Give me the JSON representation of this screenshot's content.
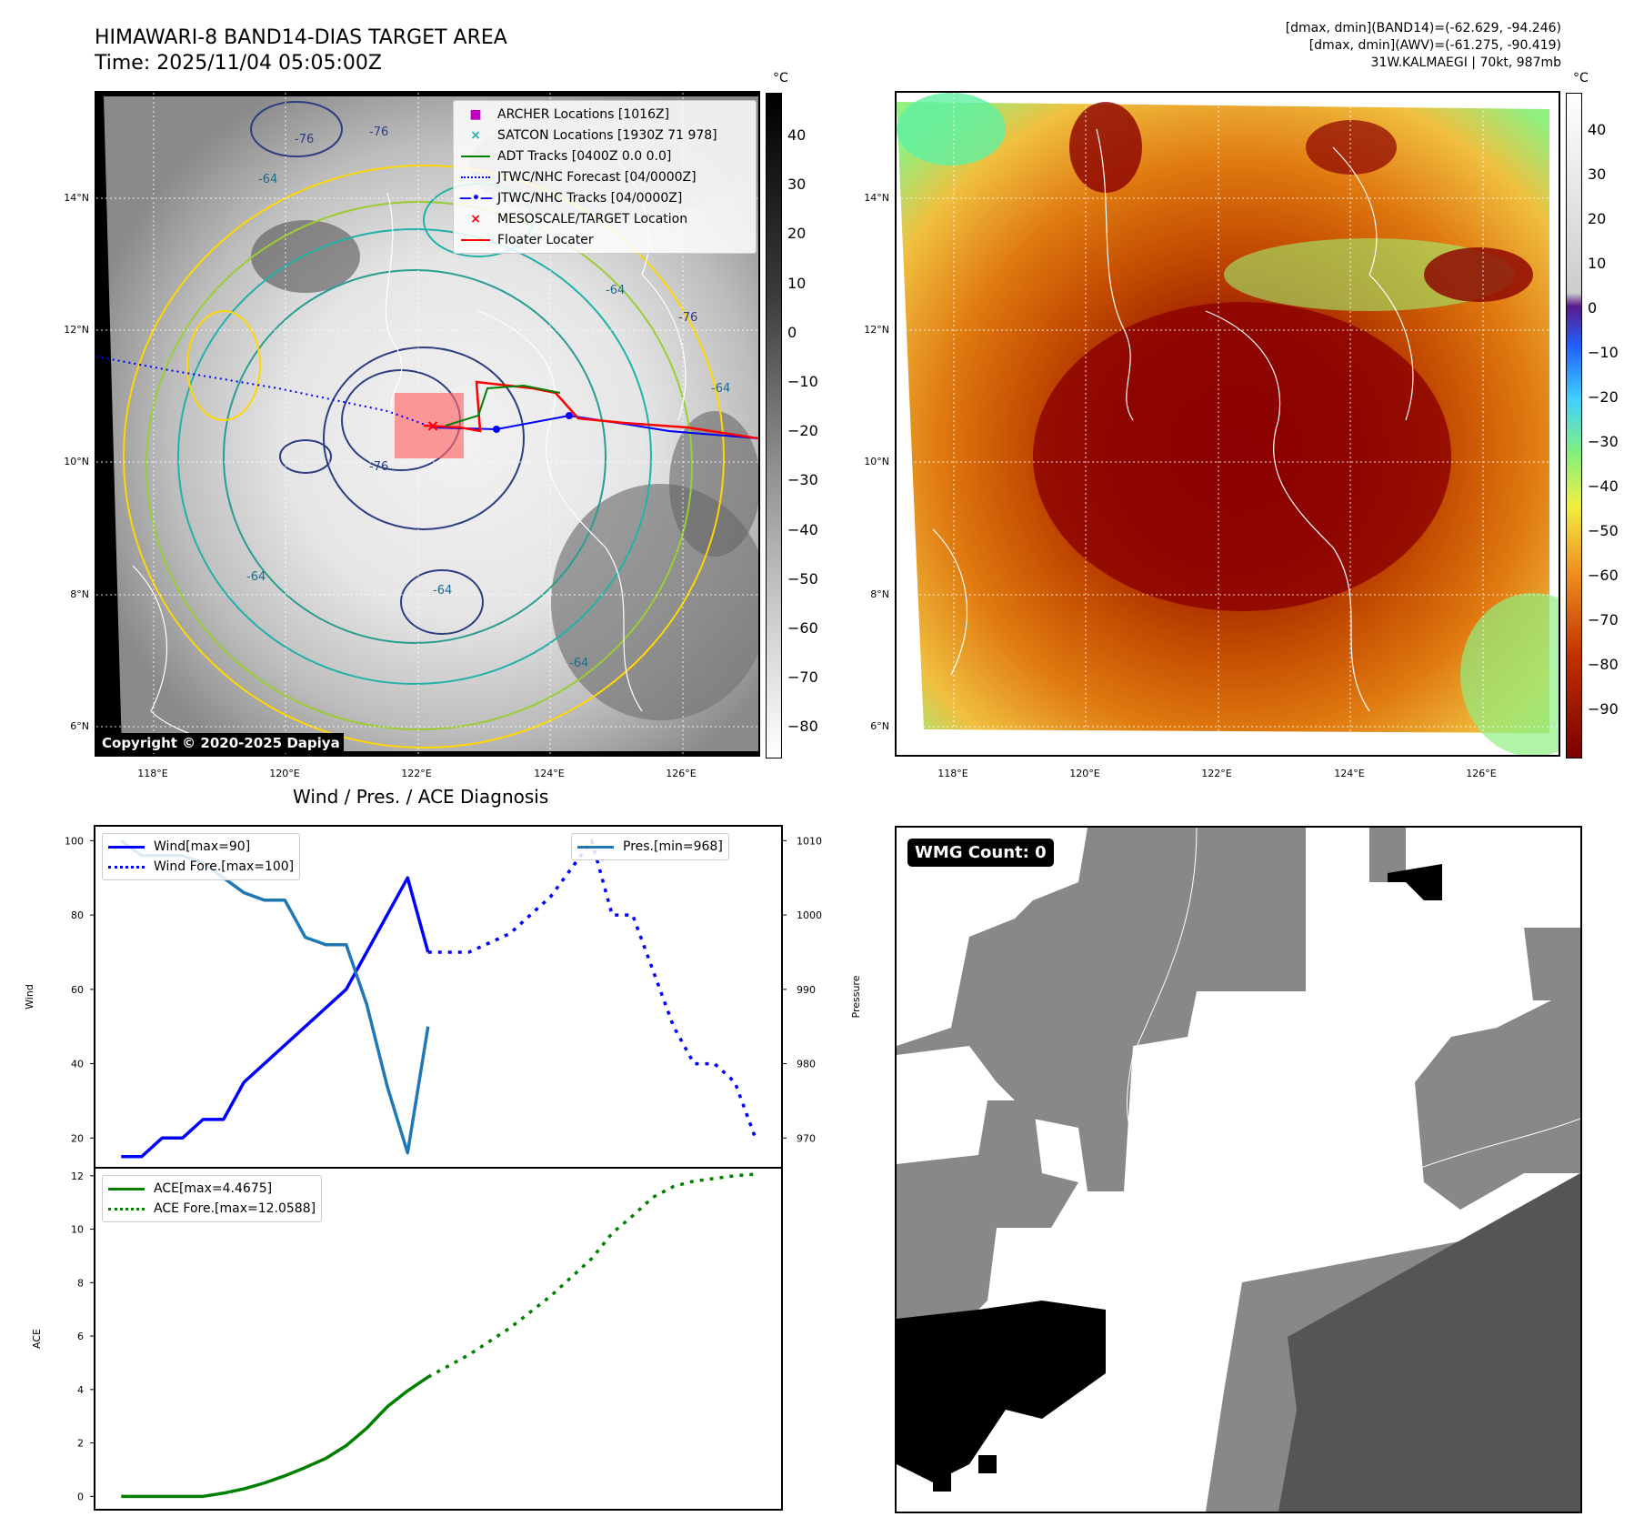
{
  "header": {
    "title_line1": "HIMAWARI-8 BAND14-DIAS TARGET AREA",
    "title_line2": "Time: 2025/11/04 05:05:00Z",
    "info_line1": "[dmax, dmin](BAND14)=(-62.629, -94.246)",
    "info_line2": "[dmax, dmin](AWV)=(-61.275, -90.419)",
    "info_line3": "31W.KALMAEGI | 70kt, 987mb"
  },
  "map_left": {
    "unit": "°C",
    "colorbar_ticks": [
      "40",
      "30",
      "20",
      "10",
      "0",
      "−10",
      "−20",
      "−30",
      "−40",
      "−50",
      "−60",
      "−70",
      "−80"
    ],
    "lat_ticks": [
      "14°N",
      "12°N",
      "10°N",
      "8°N",
      "6°N"
    ],
    "lon_ticks": [
      "118°E",
      "120°E",
      "122°E",
      "124°E",
      "126°E"
    ],
    "copyright": "Copyright © 2020-2025 Dapiya",
    "legend": [
      {
        "label": "ARCHER Locations [1016Z]",
        "symbol": "square",
        "color": "#c000c0"
      },
      {
        "label": "SATCON Locations [1930Z 71 978]",
        "symbol": "x",
        "color": "#20b2aa"
      },
      {
        "label": "ADT Tracks [0400Z 0.0 0.0]",
        "symbol": "line",
        "color": "#008000"
      },
      {
        "label": "JTWC/NHC Forecast [04/0000Z]",
        "symbol": "dotted",
        "color": "#0000ff"
      },
      {
        "label": "JTWC/NHC Tracks [04/0000Z]",
        "symbol": "dotline",
        "color": "#0000ff"
      },
      {
        "label": "MESOSCALE/TARGET Location",
        "symbol": "x",
        "color": "#ff0000"
      },
      {
        "label": "Floater Locater",
        "symbol": "line",
        "color": "#ff0000"
      }
    ],
    "contour_labels": [
      "-64",
      "-76",
      "-76",
      "-64",
      "-76",
      "-64",
      "-64",
      "-64",
      "-76",
      "-64"
    ]
  },
  "map_right": {
    "unit": "°C",
    "colorbar_ticks": [
      "40",
      "30",
      "20",
      "10",
      "0",
      "−10",
      "−20",
      "−30",
      "−40",
      "−50",
      "−60",
      "−70",
      "−80",
      "−90"
    ],
    "lat_ticks": [
      "14°N",
      "12°N",
      "10°N",
      "8°N",
      "6°N"
    ],
    "lon_ticks": [
      "118°E",
      "120°E",
      "122°E",
      "124°E",
      "126°E"
    ]
  },
  "chart_data": [
    {
      "type": "line",
      "title": "Wind / Pres. / ACE Diagnosis",
      "ylabel": "Wind",
      "ylabel_right": "Pressure",
      "ylim": [
        12,
        104
      ],
      "ylim_right": [
        966,
        1012
      ],
      "yticks": [
        "100",
        "80",
        "60",
        "40",
        "20"
      ],
      "yticks_right": [
        "1010",
        "1000",
        "990",
        "980",
        "970"
      ],
      "series": [
        {
          "name": "Wind[max=90]",
          "style": "solid",
          "color": "#0000ff",
          "x": [
            0,
            1,
            2,
            3,
            4,
            5,
            6,
            7,
            8,
            9,
            10,
            11,
            12,
            13,
            14,
            15
          ],
          "y": [
            15,
            15,
            20,
            20,
            25,
            25,
            35,
            40,
            45,
            50,
            55,
            60,
            70,
            80,
            90,
            70
          ]
        },
        {
          "name": "Wind Fore.[max=100]",
          "style": "dotted",
          "color": "#0000ff",
          "x": [
            15,
            17,
            19,
            21,
            23,
            24,
            25,
            26,
            27,
            28,
            29,
            30,
            31
          ],
          "y": [
            70,
            70,
            75,
            85,
            100,
            80,
            80,
            65,
            50,
            40,
            40,
            35,
            20
          ]
        },
        {
          "name": "Pres.[min=968]",
          "style": "solid",
          "color": "#1f77b4",
          "axis": "right",
          "x": [
            0,
            1,
            2,
            3,
            4,
            5,
            6,
            7,
            8,
            9,
            10,
            11,
            12,
            13,
            14,
            15
          ],
          "y": [
            1010,
            1008,
            1008,
            1008,
            1007,
            1005,
            1003,
            1002,
            1002,
            997,
            996,
            996,
            988,
            977,
            968,
            985
          ]
        }
      ]
    },
    {
      "type": "line",
      "ylabel": "ACE",
      "ylim": [
        -0.5,
        12.3
      ],
      "yticks": [
        "12",
        "10",
        "8",
        "6",
        "4",
        "2",
        "0"
      ],
      "series": [
        {
          "name": "ACE[max=4.4675]",
          "style": "solid",
          "color": "#008000",
          "x": [
            0,
            1,
            2,
            3,
            4,
            5,
            6,
            7,
            8,
            9,
            10,
            11,
            12,
            13,
            14,
            15
          ],
          "y": [
            0,
            0,
            0,
            0,
            0,
            0.12,
            0.28,
            0.5,
            0.77,
            1.08,
            1.42,
            1.9,
            2.55,
            3.35,
            3.95,
            4.4675
          ]
        },
        {
          "name": "ACE Fore.[max=12.0588]",
          "style": "dotted",
          "color": "#008000",
          "x": [
            15,
            17,
            19,
            21,
            23,
            24,
            25,
            26,
            27,
            28,
            29,
            30,
            31
          ],
          "y": [
            4.4675,
            5.3,
            6.3,
            7.5,
            8.9,
            9.85,
            10.5,
            11.2,
            11.6,
            11.8,
            11.9,
            12.0,
            12.0588
          ]
        }
      ]
    }
  ],
  "wmg_panel": {
    "badge": "WMG Count: 0"
  }
}
